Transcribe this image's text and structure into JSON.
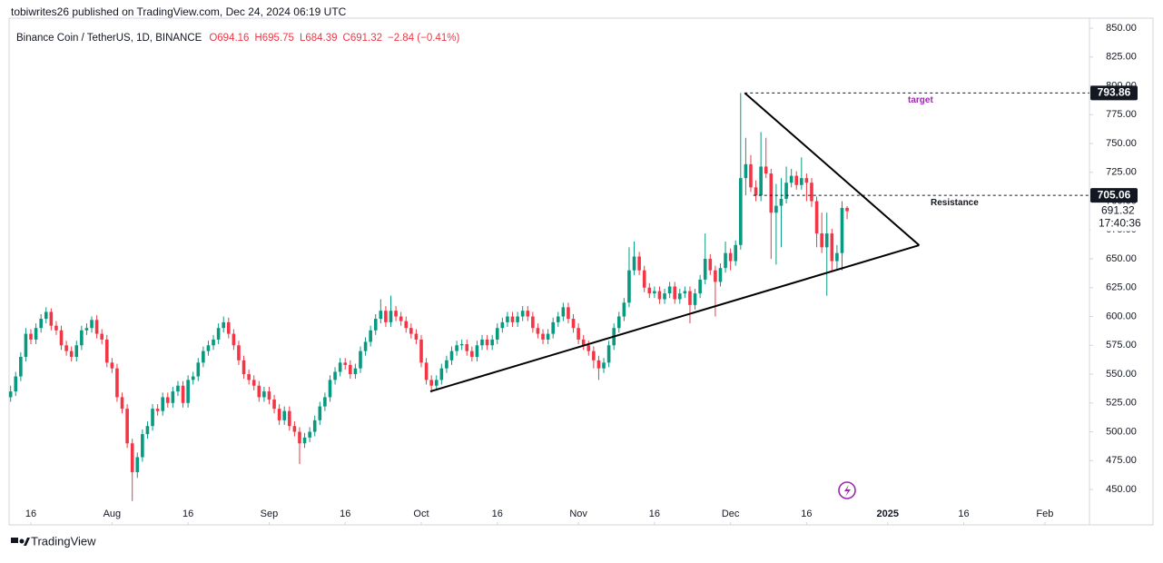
{
  "header": {
    "publisher": "tobiwrites26 published on TradingView.com, Dec 24, 2024 06:19 UTC"
  },
  "footer": {
    "brand": "TradingView"
  },
  "chart_data": {
    "type": "candlestick",
    "title": "Binance Coin / TetherUS, 1D, BINANCE",
    "ohlc_legend": [
      "O694.16",
      "H695.75",
      "L684.39",
      "C691.32",
      "−2.84 (−0.41%)"
    ],
    "up_color": "#089981",
    "down_color": "#f23645",
    "xlim": [
      -0.3,
      212.8
    ],
    "xticks": [
      {
        "value": 4,
        "label": "16"
      },
      {
        "value": 20,
        "label": "Aug"
      },
      {
        "value": 35,
        "label": "16"
      },
      {
        "value": 51,
        "label": "Sep"
      },
      {
        "value": 66,
        "label": "16"
      },
      {
        "value": 81,
        "label": "Oct"
      },
      {
        "value": 96,
        "label": "16"
      },
      {
        "value": 112,
        "label": "Nov"
      },
      {
        "value": 127,
        "label": "16"
      },
      {
        "value": 142,
        "label": "Dec"
      },
      {
        "value": 157,
        "label": "16"
      },
      {
        "value": 173,
        "label": "2025"
      },
      {
        "value": 188,
        "label": "16"
      },
      {
        "value": 204,
        "label": "Feb"
      }
    ],
    "ylim": [
      419.3,
      858.7
    ],
    "yticks": [
      {
        "value": 450,
        "label": "450.00"
      },
      {
        "value": 475,
        "label": "475.00"
      },
      {
        "value": 500,
        "label": "500.00"
      },
      {
        "value": 525,
        "label": "525.00"
      },
      {
        "value": 550,
        "label": "550.00"
      },
      {
        "value": 575,
        "label": "575.00"
      },
      {
        "value": 600,
        "label": "600.00"
      },
      {
        "value": 625,
        "label": "625.00"
      },
      {
        "value": 650,
        "label": "650.00"
      },
      {
        "value": 675,
        "label": "675.00"
      },
      {
        "value": 700,
        "label": "700.00"
      },
      {
        "value": 725,
        "label": "725.00"
      },
      {
        "value": 750,
        "label": "750.00"
      },
      {
        "value": 775,
        "label": "775.00"
      },
      {
        "value": 800,
        "label": "800.00"
      },
      {
        "value": 825,
        "label": "825.00"
      },
      {
        "value": 850,
        "label": "850.00"
      }
    ],
    "last_price": 691.32,
    "countdown": "17:40:36",
    "horizontal_lines": [
      {
        "value": 793.86,
        "start": 144.8,
        "label": "target",
        "color": "#9c27b0"
      },
      {
        "value": 705.06,
        "start": 146.5,
        "label": "Resistance",
        "color": "#131722"
      }
    ],
    "trendlines": [
      {
        "x": [
          144.8,
          179.2
        ],
        "y": [
          793.86,
          661.8
        ]
      },
      {
        "x": [
          82.8,
          179.2
        ],
        "y": [
          535,
          661.8
        ]
      }
    ],
    "candles": [
      [
        530,
        540,
        526,
        535
      ],
      [
        535,
        552,
        531,
        548
      ],
      [
        548,
        569,
        544,
        565
      ],
      [
        565,
        590,
        561,
        585
      ],
      [
        585,
        589,
        576,
        580
      ],
      [
        580,
        594,
        576,
        590
      ],
      [
        590,
        602,
        586,
        598
      ],
      [
        598,
        608,
        594,
        604
      ],
      [
        604,
        607,
        588,
        592
      ],
      [
        592,
        596,
        584,
        588
      ],
      [
        588,
        592,
        571,
        575
      ],
      [
        575,
        579,
        566,
        570
      ],
      [
        570,
        574,
        561,
        565
      ],
      [
        565,
        579,
        561,
        575
      ],
      [
        575,
        592,
        571,
        588
      ],
      [
        588,
        594,
        584,
        590
      ],
      [
        590,
        600,
        586,
        597
      ],
      [
        597,
        601,
        581,
        585
      ],
      [
        585,
        589,
        576,
        580
      ],
      [
        580,
        584,
        556,
        560
      ],
      [
        560,
        564,
        551,
        555
      ],
      [
        555,
        559,
        526,
        530
      ],
      [
        530,
        534,
        516,
        520
      ],
      [
        520,
        524,
        486,
        490
      ],
      [
        490,
        494,
        440,
        465
      ],
      [
        465,
        482,
        460,
        478
      ],
      [
        478,
        502,
        474,
        498
      ],
      [
        498,
        509,
        494,
        505
      ],
      [
        505,
        524,
        501,
        520
      ],
      [
        520,
        524,
        514,
        518
      ],
      [
        518,
        534,
        514,
        530
      ],
      [
        530,
        534,
        521,
        525
      ],
      [
        525,
        539,
        521,
        535
      ],
      [
        535,
        544,
        531,
        540
      ],
      [
        540,
        544,
        521,
        525
      ],
      [
        525,
        549,
        521,
        545
      ],
      [
        545,
        552,
        541,
        548
      ],
      [
        548,
        564,
        544,
        560
      ],
      [
        560,
        574,
        556,
        570
      ],
      [
        570,
        579,
        566,
        575
      ],
      [
        575,
        584,
        571,
        580
      ],
      [
        580,
        594,
        576,
        590
      ],
      [
        590,
        600,
        586,
        595
      ],
      [
        595,
        599,
        581,
        585
      ],
      [
        585,
        589,
        571,
        575
      ],
      [
        575,
        579,
        558,
        562
      ],
      [
        562,
        566,
        546,
        550
      ],
      [
        550,
        554,
        541,
        545
      ],
      [
        545,
        549,
        536,
        540
      ],
      [
        540,
        544,
        526,
        530
      ],
      [
        530,
        539,
        526,
        535
      ],
      [
        535,
        539,
        524,
        528
      ],
      [
        528,
        532,
        516,
        520
      ],
      [
        520,
        524,
        506,
        510
      ],
      [
        510,
        522,
        506,
        518
      ],
      [
        518,
        522,
        501,
        505
      ],
      [
        505,
        509,
        496,
        500
      ],
      [
        500,
        504,
        472,
        490
      ],
      [
        490,
        499,
        486,
        495
      ],
      [
        495,
        504,
        491,
        500
      ],
      [
        500,
        514,
        496,
        510
      ],
      [
        510,
        526,
        506,
        522
      ],
      [
        522,
        534,
        518,
        530
      ],
      [
        530,
        549,
        526,
        545
      ],
      [
        545,
        556,
        541,
        552
      ],
      [
        552,
        564,
        548,
        560
      ],
      [
        560,
        564,
        554,
        558
      ],
      [
        558,
        562,
        546,
        550
      ],
      [
        550,
        559,
        546,
        555
      ],
      [
        555,
        574,
        551,
        570
      ],
      [
        570,
        582,
        566,
        578
      ],
      [
        578,
        592,
        574,
        588
      ],
      [
        588,
        602,
        584,
        598
      ],
      [
        598,
        615,
        594,
        605
      ],
      [
        605,
        609,
        591,
        595
      ],
      [
        595,
        618,
        591,
        605
      ],
      [
        605,
        609,
        596,
        600
      ],
      [
        600,
        604,
        592,
        596
      ],
      [
        596,
        600,
        586,
        590
      ],
      [
        590,
        594,
        581,
        585
      ],
      [
        585,
        589,
        576,
        580
      ],
      [
        580,
        584,
        556,
        560
      ],
      [
        560,
        564,
        541,
        545
      ],
      [
        545,
        549,
        534,
        540
      ],
      [
        540,
        549,
        536,
        545
      ],
      [
        545,
        559,
        541,
        555
      ],
      [
        555,
        566,
        551,
        562
      ],
      [
        562,
        574,
        558,
        570
      ],
      [
        570,
        579,
        566,
        575
      ],
      [
        575,
        580,
        571,
        576
      ],
      [
        576,
        580,
        566,
        570
      ],
      [
        570,
        574,
        561,
        565
      ],
      [
        565,
        579,
        561,
        575
      ],
      [
        575,
        584,
        571,
        580
      ],
      [
        580,
        584,
        571,
        575
      ],
      [
        575,
        584,
        571,
        580
      ],
      [
        580,
        594,
        576,
        590
      ],
      [
        590,
        599,
        586,
        595
      ],
      [
        595,
        604,
        591,
        600
      ],
      [
        600,
        604,
        591,
        595
      ],
      [
        595,
        604,
        591,
        600
      ],
      [
        600,
        609,
        596,
        605
      ],
      [
        605,
        609,
        596,
        600
      ],
      [
        600,
        604,
        586,
        590
      ],
      [
        590,
        594,
        581,
        585
      ],
      [
        585,
        589,
        576,
        580
      ],
      [
        580,
        589,
        576,
        585
      ],
      [
        585,
        599,
        581,
        595
      ],
      [
        595,
        604,
        591,
        600
      ],
      [
        600,
        612,
        596,
        608
      ],
      [
        608,
        612,
        594,
        598
      ],
      [
        598,
        602,
        586,
        590
      ],
      [
        590,
        594,
        576,
        580
      ],
      [
        580,
        584,
        571,
        575
      ],
      [
        575,
        579,
        566,
        570
      ],
      [
        570,
        574,
        555,
        562
      ],
      [
        562,
        566,
        545,
        555
      ],
      [
        555,
        564,
        551,
        560
      ],
      [
        560,
        579,
        556,
        575
      ],
      [
        575,
        594,
        571,
        590
      ],
      [
        590,
        604,
        586,
        600
      ],
      [
        600,
        616,
        596,
        612
      ],
      [
        612,
        660,
        608,
        640
      ],
      [
        640,
        665,
        636,
        652
      ],
      [
        652,
        656,
        636,
        640
      ],
      [
        640,
        644,
        621,
        625
      ],
      [
        625,
        629,
        616,
        620
      ],
      [
        620,
        626,
        616,
        622
      ],
      [
        622,
        626,
        611,
        615
      ],
      [
        615,
        624,
        611,
        620
      ],
      [
        620,
        630,
        616,
        626
      ],
      [
        626,
        630,
        611,
        615
      ],
      [
        615,
        624,
        611,
        620
      ],
      [
        620,
        626,
        616,
        622
      ],
      [
        622,
        626,
        594,
        610
      ],
      [
        610,
        624,
        606,
        620
      ],
      [
        620,
        636,
        616,
        632
      ],
      [
        632,
        672,
        628,
        650
      ],
      [
        650,
        654,
        636,
        640
      ],
      [
        640,
        644,
        600,
        630
      ],
      [
        630,
        646,
        626,
        642
      ],
      [
        642,
        665,
        638,
        655
      ],
      [
        655,
        659,
        640,
        648
      ],
      [
        648,
        666,
        644,
        662
      ],
      [
        662,
        793.86,
        658,
        720
      ],
      [
        720,
        755,
        705,
        732
      ],
      [
        732,
        740,
        708,
        712
      ],
      [
        712,
        718,
        700,
        705
      ],
      [
        705,
        760,
        700,
        730
      ],
      [
        730,
        755,
        720,
        724
      ],
      [
        724,
        728,
        650,
        690
      ],
      [
        690,
        715,
        645,
        696
      ],
      [
        696,
        720,
        660,
        702
      ],
      [
        702,
        730,
        698,
        716
      ],
      [
        716,
        728,
        712,
        722
      ],
      [
        722,
        726,
        710,
        714
      ],
      [
        714,
        738,
        710,
        720
      ],
      [
        720,
        724,
        700,
        716
      ],
      [
        716,
        720,
        695,
        700
      ],
      [
        700,
        704,
        660,
        672
      ],
      [
        672,
        690,
        655,
        660
      ],
      [
        660,
        690,
        618,
        672
      ],
      [
        672,
        676,
        640,
        648
      ],
      [
        648,
        662,
        640,
        655
      ],
      [
        655,
        700,
        640,
        694.16
      ],
      [
        694.16,
        695.75,
        684.39,
        691.32
      ]
    ]
  }
}
